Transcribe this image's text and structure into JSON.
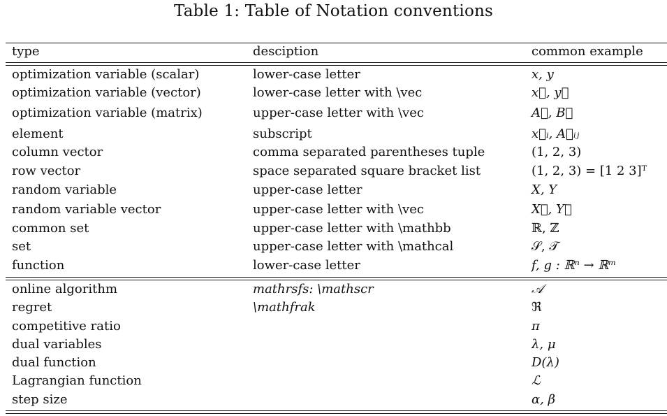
{
  "caption": "Table 1: Table of Notation conventions",
  "headers": [
    "type",
    "desciption",
    "common example"
  ],
  "group1": [
    {
      "type": "optimization variable (scalar)",
      "desc": "lower-case letter",
      "example": "x, y"
    },
    {
      "type": "optimization variable (vector)",
      "desc": "lower-case letter with \\vec",
      "example": "x⃗, y⃗"
    },
    {
      "type": "optimization variable (matrix)",
      "desc": "upper-case letter with \\vec",
      "example": "A⃗, B⃗"
    },
    {
      "type": "element",
      "desc": "subscript",
      "example": "x⃗ᵢ, A⃗ᵢⱼ"
    },
    {
      "type": "column vector",
      "desc": "comma separated parentheses tuple",
      "example": "(1, 2, 3)"
    },
    {
      "type": "row vector",
      "desc": "space separated square bracket list",
      "example": "(1, 2, 3) = [1 2 3]ᵀ"
    },
    {
      "type": "random variable",
      "desc": "upper-case letter",
      "example": "X, Y"
    },
    {
      "type": "random variable vector",
      "desc": "upper-case letter with \\vec",
      "example": "X⃗, Y⃗"
    },
    {
      "type": "common set",
      "desc": "upper-case letter with \\mathbb",
      "example": "ℝ, ℤ"
    },
    {
      "type": "set",
      "desc": "upper-case letter with \\mathcal",
      "example": "𝒮, 𝒯"
    },
    {
      "type": "function",
      "desc": "lower-case letter",
      "example": "f, g : ℝⁿ → ℝᵐ"
    }
  ],
  "group2": [
    {
      "type": "online algorithm",
      "desc": "mathrsfs: \\mathscr",
      "example": "𝒜"
    },
    {
      "type": "regret",
      "desc": "\\mathfrak",
      "example": "ℜ"
    },
    {
      "type": "competitive ratio",
      "desc": "",
      "example": "π"
    },
    {
      "type": "dual variables",
      "desc": "",
      "example": "λ, μ"
    },
    {
      "type": "dual function",
      "desc": "",
      "example": "D(λ)"
    },
    {
      "type": "Lagrangian function",
      "desc": "",
      "example": "ℒ"
    },
    {
      "type": "step size",
      "desc": "",
      "example": "α, β"
    }
  ]
}
